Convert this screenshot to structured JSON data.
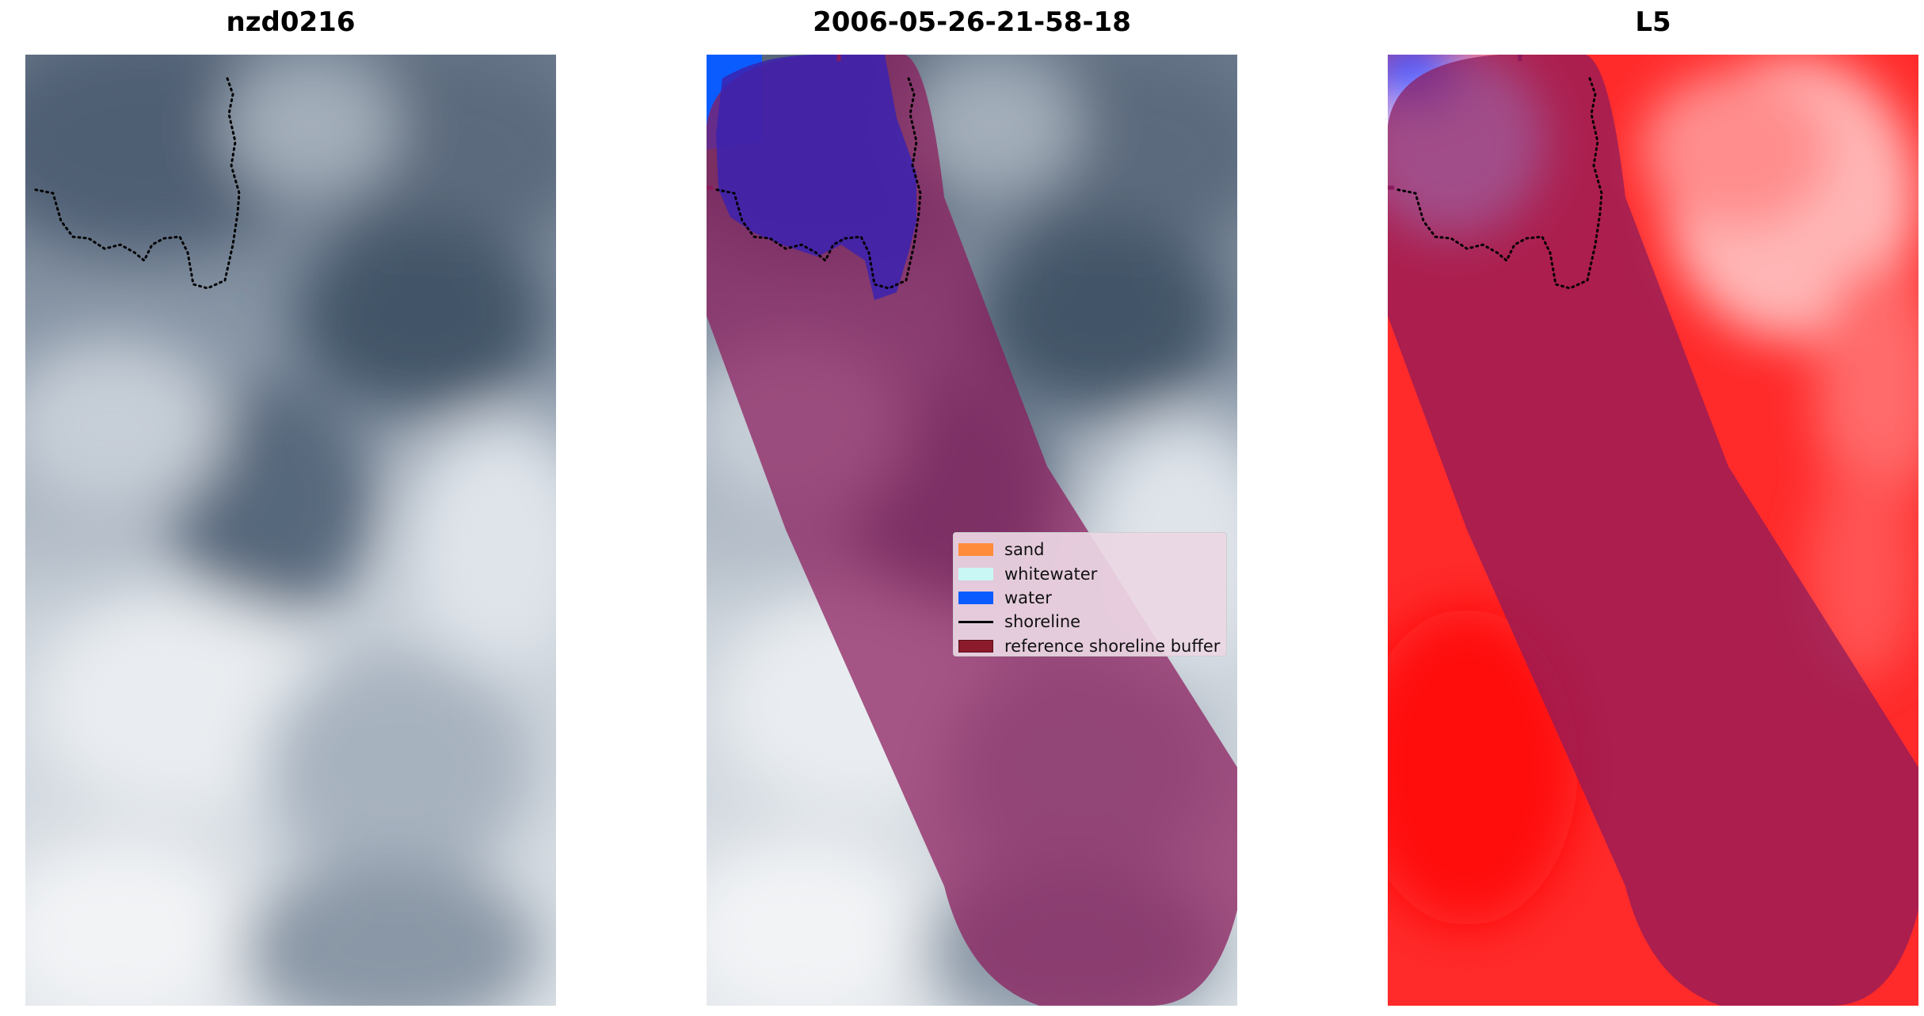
{
  "panels": [
    {
      "title": "nzd0216"
    },
    {
      "title": "2006-05-26-21-58-18"
    },
    {
      "title": "L5"
    }
  ],
  "legend": {
    "items": [
      {
        "label": "sand",
        "color": "#ff8c3a",
        "kind": "patch"
      },
      {
        "label": "whitewater",
        "color": "#c8f7f5",
        "kind": "patch"
      },
      {
        "label": "water",
        "color": "#0a5cff",
        "kind": "patch"
      },
      {
        "label": "shoreline",
        "color": "#000000",
        "kind": "line"
      },
      {
        "label": "reference shoreline buffer",
        "color": "#8b1a2b",
        "kind": "patch"
      }
    ]
  },
  "colors": {
    "cloud_light": "#e8ecef",
    "cloud_dark": "#4e5f73",
    "buffer_overlay": "#8b1a5c",
    "index_red": "#ff1a1a",
    "index_blue": "#2030ff",
    "water_mask": "#0a5cff"
  }
}
